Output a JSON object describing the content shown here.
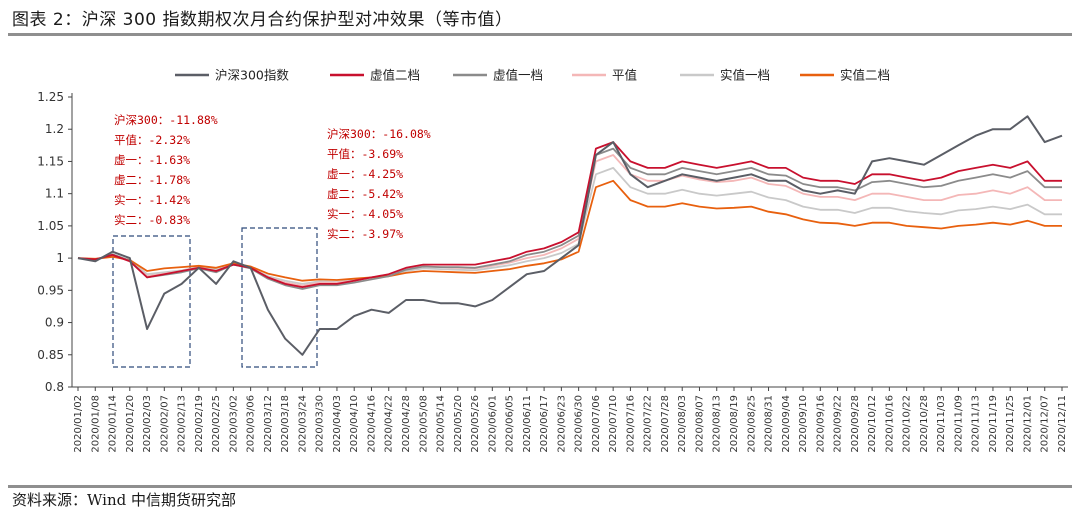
{
  "header": {
    "title": "图表 2：沪深 300 指数期权次月合约保护型对冲效果（等市值）"
  },
  "footer": {
    "source": "资料来源：Wind 中信期货研究部"
  },
  "chart_data": {
    "type": "line",
    "title": "",
    "xlabel": "",
    "ylabel": "",
    "ylim": [
      0.8,
      1.25
    ],
    "yticks": [
      "0.8",
      "0.85",
      "0.9",
      "0.95",
      "1",
      "1.05",
      "1.1",
      "1.15",
      "1.2",
      "1.25"
    ],
    "grid": false,
    "legend_position": "top",
    "x": [
      "2020/01/02",
      "2020/01/08",
      "2020/01/14",
      "2020/01/20",
      "2020/02/03",
      "2020/02/07",
      "2020/02/13",
      "2020/02/19",
      "2020/02/25",
      "2020/03/02",
      "2020/03/06",
      "2020/03/12",
      "2020/03/18",
      "2020/03/24",
      "2020/03/30",
      "2020/04/03",
      "2020/04/10",
      "2020/04/16",
      "2020/04/22",
      "2020/04/28",
      "2020/05/08",
      "2020/05/14",
      "2020/05/20",
      "2020/05/26",
      "2020/06/01",
      "2020/06/05",
      "2020/06/11",
      "2020/06/17",
      "2020/06/23",
      "2020/06/30",
      "2020/07/06",
      "2020/07/10",
      "2020/07/16",
      "2020/07/22",
      "2020/07/28",
      "2020/08/03",
      "2020/08/07",
      "2020/08/13",
      "2020/08/19",
      "2020/08/25",
      "2020/08/31",
      "2020/09/04",
      "2020/09/10",
      "2020/09/16",
      "2020/09/22",
      "2020/09/28",
      "2020/10/12",
      "2020/10/16",
      "2020/10/22",
      "2020/10/28",
      "2020/11/03",
      "2020/11/09",
      "2020/11/13",
      "2020/11/19",
      "2020/11/25",
      "2020/12/01",
      "2020/12/07",
      "2020/12/11"
    ],
    "series": [
      {
        "name": "沪深300指数",
        "color": "#5b5e66",
        "values": [
          1.0,
          0.995,
          1.01,
          1.0,
          0.89,
          0.945,
          0.96,
          0.985,
          0.96,
          0.995,
          0.985,
          0.92,
          0.875,
          0.85,
          0.89,
          0.89,
          0.91,
          0.92,
          0.915,
          0.935,
          0.935,
          0.93,
          0.93,
          0.925,
          0.935,
          0.955,
          0.975,
          0.98,
          1.0,
          1.02,
          1.16,
          1.18,
          1.13,
          1.11,
          1.12,
          1.13,
          1.125,
          1.12,
          1.125,
          1.13,
          1.12,
          1.12,
          1.105,
          1.1,
          1.105,
          1.1,
          1.15,
          1.155,
          1.15,
          1.145,
          1.16,
          1.175,
          1.19,
          1.2,
          1.2,
          1.22,
          1.18,
          1.19
        ]
      },
      {
        "name": "虚值二档",
        "color": "#c8102e",
        "values": [
          1.0,
          0.998,
          1.005,
          0.995,
          0.97,
          0.975,
          0.98,
          0.985,
          0.98,
          0.99,
          0.985,
          0.97,
          0.96,
          0.955,
          0.96,
          0.96,
          0.965,
          0.97,
          0.975,
          0.985,
          0.99,
          0.99,
          0.99,
          0.99,
          0.995,
          1.0,
          1.01,
          1.015,
          1.025,
          1.04,
          1.17,
          1.18,
          1.15,
          1.14,
          1.14,
          1.15,
          1.145,
          1.14,
          1.145,
          1.15,
          1.14,
          1.14,
          1.125,
          1.12,
          1.12,
          1.115,
          1.13,
          1.13,
          1.125,
          1.12,
          1.125,
          1.135,
          1.14,
          1.145,
          1.14,
          1.15,
          1.12,
          1.12
        ]
      },
      {
        "name": "虚值一档",
        "color": "#8b8b8b",
        "values": [
          1.0,
          0.997,
          1.006,
          0.996,
          0.97,
          0.974,
          0.978,
          0.984,
          0.978,
          0.99,
          0.984,
          0.968,
          0.958,
          0.952,
          0.958,
          0.958,
          0.962,
          0.967,
          0.972,
          0.982,
          0.987,
          0.986,
          0.986,
          0.985,
          0.99,
          0.995,
          1.005,
          1.01,
          1.02,
          1.035,
          1.16,
          1.17,
          1.14,
          1.13,
          1.13,
          1.14,
          1.135,
          1.13,
          1.135,
          1.14,
          1.13,
          1.128,
          1.115,
          1.11,
          1.11,
          1.105,
          1.118,
          1.12,
          1.115,
          1.11,
          1.112,
          1.12,
          1.125,
          1.13,
          1.125,
          1.135,
          1.11,
          1.11
        ]
      },
      {
        "name": "平值",
        "color": "#f4b7b7",
        "values": [
          1.0,
          0.998,
          1.004,
          0.996,
          0.972,
          0.976,
          0.98,
          0.985,
          0.98,
          0.99,
          0.985,
          0.97,
          0.962,
          0.957,
          0.962,
          0.962,
          0.965,
          0.97,
          0.974,
          0.983,
          0.987,
          0.986,
          0.985,
          0.984,
          0.988,
          0.993,
          1.0,
          1.005,
          1.015,
          1.03,
          1.15,
          1.16,
          1.13,
          1.12,
          1.12,
          1.128,
          1.122,
          1.118,
          1.12,
          1.125,
          1.115,
          1.112,
          1.1,
          1.095,
          1.095,
          1.09,
          1.1,
          1.1,
          1.095,
          1.09,
          1.09,
          1.098,
          1.1,
          1.105,
          1.1,
          1.11,
          1.09,
          1.09
        ]
      },
      {
        "name": "实值一档",
        "color": "#c9c9c9",
        "values": [
          1.0,
          0.998,
          1.003,
          0.997,
          0.975,
          0.978,
          0.981,
          0.986,
          0.982,
          0.99,
          0.985,
          0.972,
          0.965,
          0.96,
          0.964,
          0.963,
          0.966,
          0.97,
          0.973,
          0.98,
          0.984,
          0.983,
          0.982,
          0.981,
          0.985,
          0.989,
          0.995,
          1.0,
          1.008,
          1.022,
          1.13,
          1.14,
          1.11,
          1.1,
          1.1,
          1.106,
          1.1,
          1.097,
          1.1,
          1.103,
          1.094,
          1.09,
          1.08,
          1.075,
          1.075,
          1.07,
          1.078,
          1.078,
          1.073,
          1.07,
          1.068,
          1.074,
          1.076,
          1.08,
          1.076,
          1.083,
          1.068,
          1.068
        ]
      },
      {
        "name": "实值二档",
        "color": "#e8600e",
        "values": [
          1.0,
          0.999,
          1.002,
          0.997,
          0.98,
          0.984,
          0.986,
          0.988,
          0.985,
          0.992,
          0.987,
          0.976,
          0.97,
          0.965,
          0.967,
          0.966,
          0.968,
          0.97,
          0.972,
          0.977,
          0.98,
          0.979,
          0.978,
          0.977,
          0.98,
          0.983,
          0.988,
          0.992,
          0.998,
          1.01,
          1.11,
          1.12,
          1.09,
          1.08,
          1.08,
          1.085,
          1.08,
          1.077,
          1.078,
          1.08,
          1.072,
          1.068,
          1.06,
          1.055,
          1.054,
          1.05,
          1.055,
          1.055,
          1.05,
          1.048,
          1.046,
          1.05,
          1.052,
          1.055,
          1.052,
          1.058,
          1.05,
          1.05
        ]
      }
    ],
    "annotations": [
      {
        "lines": [
          "沪深300：-11.88%",
          "平值：-2.32%",
          "虚一：-1.63%",
          "虚二：-1.78%",
          "实一：-1.42%",
          "实二：-0.83%"
        ]
      },
      {
        "lines": [
          "沪深300：-16.08%",
          "平值：-3.69%",
          "虚一：-4.25%",
          "虚二：-5.42%",
          "实一：-4.05%",
          "实二：-3.97%"
        ]
      }
    ]
  }
}
